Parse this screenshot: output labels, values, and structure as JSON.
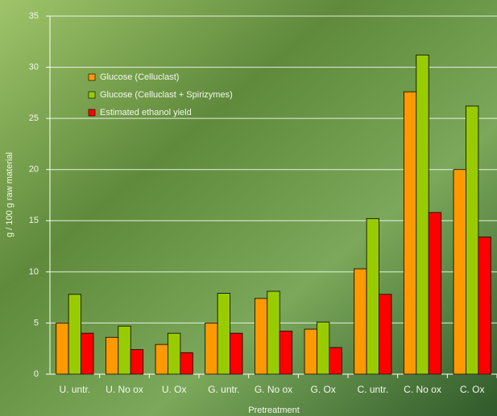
{
  "chart_data": {
    "type": "bar",
    "xlabel": "Pretreatment",
    "ylabel": "g / 100 g raw material",
    "categories": [
      "U. untr.",
      "U. No ox",
      "U. Ox",
      "G. untr.",
      "G. No ox",
      "G. Ox",
      "C. untr.",
      "C. No ox",
      "C. Ox"
    ],
    "series": [
      {
        "name": "Glucose (Celluclast)",
        "color": "#ff9900",
        "values": [
          5.0,
          3.6,
          2.9,
          5.0,
          7.4,
          4.4,
          10.3,
          27.6,
          20.0
        ]
      },
      {
        "name": "Glucose (Celluclast + Spirizymes)",
        "color": "#99cc00",
        "values": [
          7.8,
          4.7,
          4.0,
          7.9,
          8.1,
          5.1,
          15.2,
          31.2,
          26.2
        ]
      },
      {
        "name": "Estimated ethanol yield",
        "color": "#ff0000",
        "values": [
          4.0,
          2.4,
          2.1,
          4.0,
          4.2,
          2.6,
          7.8,
          15.8,
          13.4
        ]
      }
    ],
    "ylim": [
      0,
      35
    ],
    "yticks": [
      0,
      5,
      10,
      15,
      20,
      25,
      30,
      35
    ],
    "grid": true,
    "legend": "upper left"
  }
}
